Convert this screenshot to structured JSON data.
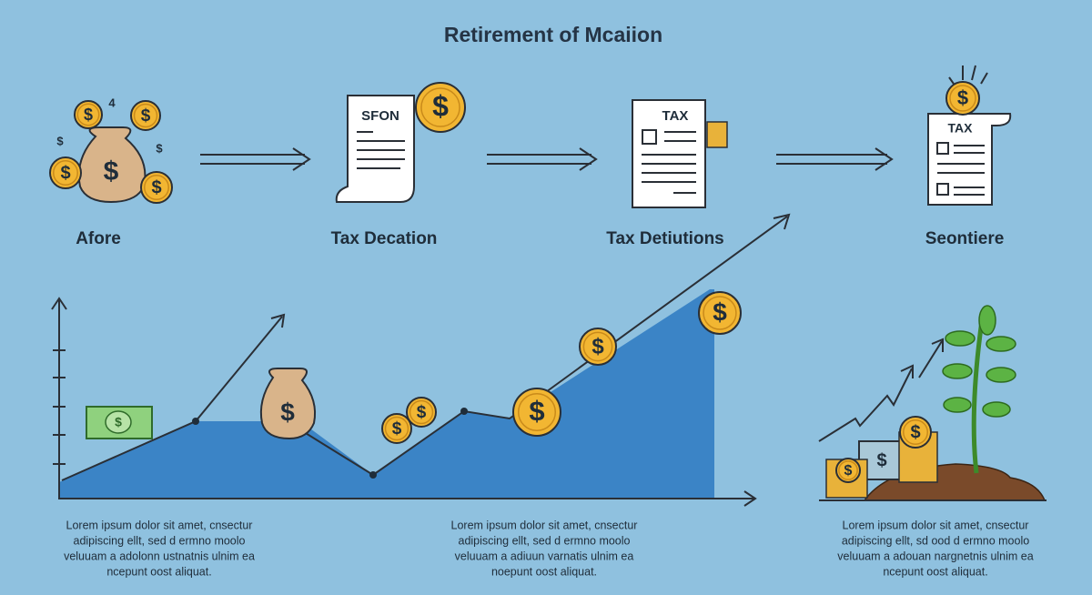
{
  "header": {
    "title": "Retirement of Mcaiion"
  },
  "steps": [
    {
      "label": "Afore"
    },
    {
      "label": "Tax Decation",
      "document_text": "SFON"
    },
    {
      "label": "Tax Detiutions",
      "document_text": "TAX"
    },
    {
      "label": "Seontiere",
      "document_text": "TAX"
    }
  ],
  "currency_symbol": "$",
  "small_mark": "4",
  "paragraphs": [
    {
      "lines": [
        "Lorem ipsum dolor sit amet, cnsectur",
        "adipiscing ellt,  sed d ermno moolo",
        "veluuam a adolonn ustnatnis ulnim ea",
        "ncepunt oost aliquat."
      ]
    },
    {
      "lines": [
        "Lorem ipsum dolor sit amet, cnsectur",
        "adipiscing ellt,  sed d ermno moolo",
        "veluuam a adiuun varnatis ulnim ea",
        "noepunt oost aliquat."
      ]
    },
    {
      "lines": [
        "Lorem ipsum dolor sit amet, cnsectur",
        "adipiscing ellt, sd ood d ermno moolo",
        "veluuam a adouan nargnetnis ulnim ea",
        "ncepunt oost aliquat."
      ]
    }
  ]
}
